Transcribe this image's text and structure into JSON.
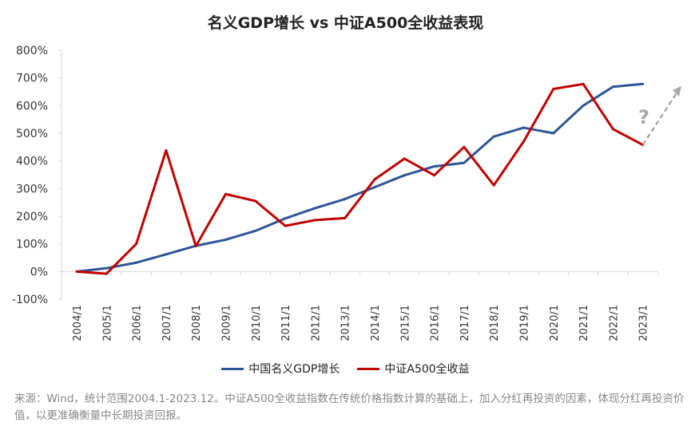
{
  "title": "名义GDP增长 vs 中证A500全收益表现",
  "note": "来源：Wind，统计范围2004.1-2023.12。中证A500全收益指数在传统价格指数计算的基础上，加入分红再投资的因素，体现分红再投资价值，以更准确衡量中长期投资回报。",
  "colors": {
    "gdp": "#2E5597",
    "a500": "#C00000",
    "arrow": "#AAAAAA"
  },
  "chart_data": {
    "type": "line",
    "title": "名义GDP增长 vs 中证A500全收益表现",
    "categories": [
      "2004/1",
      "2005/1",
      "2006/1",
      "2007/1",
      "2008/1",
      "2009/1",
      "2010/1",
      "2011/1",
      "2012/1",
      "2013/1",
      "2014/1",
      "2015/1",
      "2016/1",
      "2017/1",
      "2018/1",
      "2019/1",
      "2020/1",
      "2021/1",
      "2022/1",
      "2023/1"
    ],
    "yticks": [
      "-100%",
      "0%",
      "100%",
      "200%",
      "300%",
      "400%",
      "500%",
      "600%",
      "700%",
      "800%"
    ],
    "ylim": [
      -100,
      800
    ],
    "grid": false,
    "legend": "bottom",
    "annotation": "?",
    "series": [
      {
        "name": "中国名义GDP增长",
        "values": [
          0,
          12,
          32,
          62,
          93,
          115,
          147,
          192,
          229,
          262,
          305,
          348,
          380,
          393,
          488,
          520,
          500,
          600,
          668,
          678
        ]
      },
      {
        "name": "中证A500全收益",
        "values": [
          0,
          -8,
          100,
          438,
          92,
          280,
          255,
          165,
          186,
          193,
          333,
          408,
          348,
          450,
          312,
          470,
          660,
          678,
          515,
          458
        ]
      }
    ]
  }
}
